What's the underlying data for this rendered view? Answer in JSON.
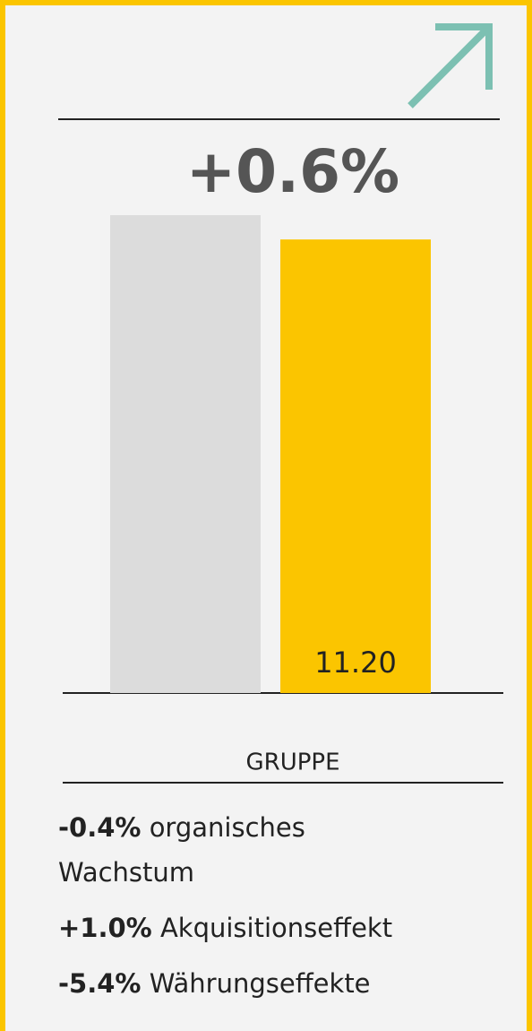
{
  "chart_data": {
    "type": "bar",
    "headline": "+0.6%",
    "categories": [
      null,
      null
    ],
    "values": [
      11.8,
      11.2
    ],
    "value_labels": [
      null,
      "11.20"
    ],
    "colors": [
      "#dcdcdc",
      "#fbc500"
    ],
    "xlabel": "GRUPPE",
    "notes": [
      {
        "figure": "-0.4%",
        "text": "organisches Wachstum"
      },
      {
        "figure": "+1.0%",
        "text": "Akquisitionseffekt"
      },
      {
        "figure": "-5.4%",
        "text": "Währungseffekte"
      }
    ]
  }
}
